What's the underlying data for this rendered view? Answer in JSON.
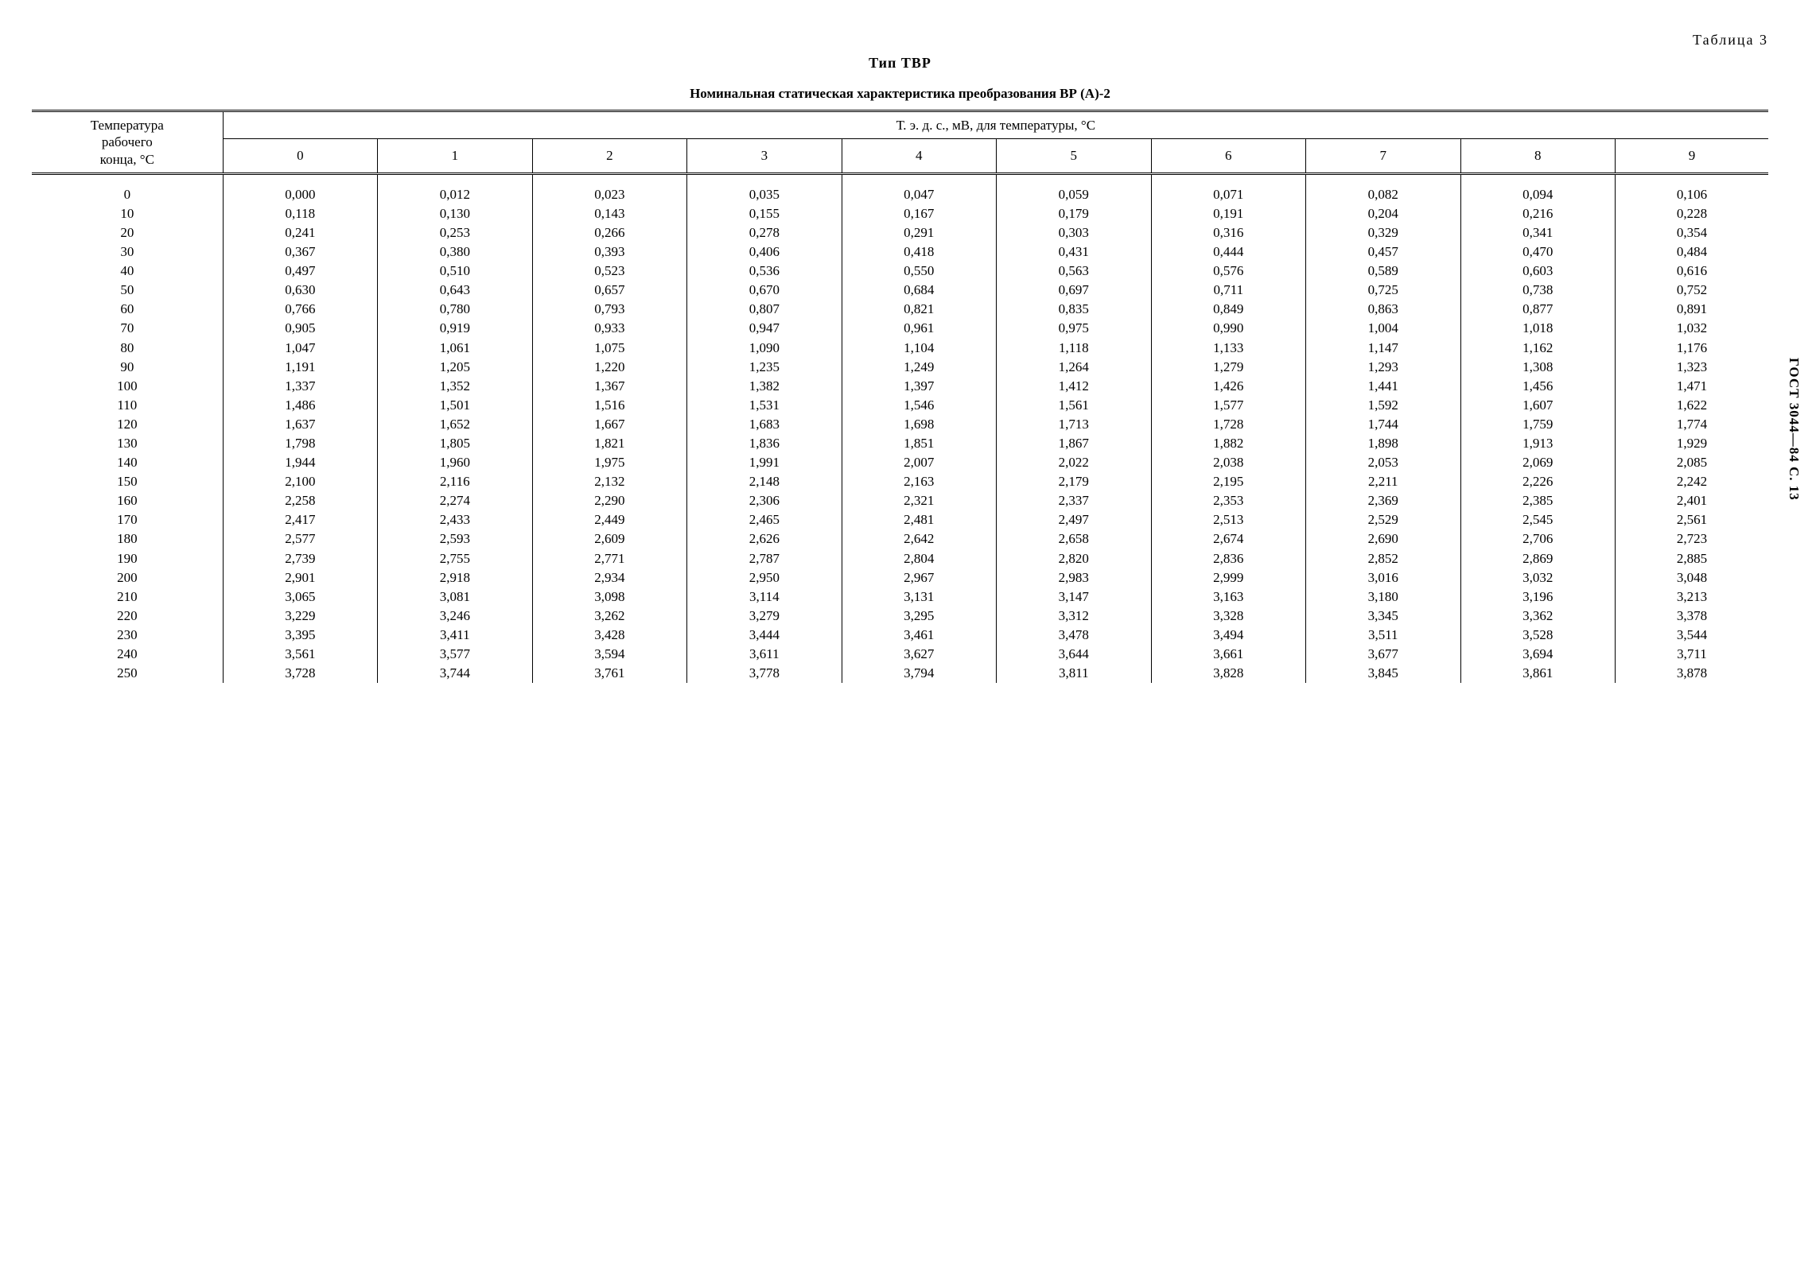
{
  "table_label": "Таблица 3",
  "title": "Тип ТВР",
  "subtitle": "Номинальная статическая характеристика преобразования ВР (А)-2",
  "side_label": "ГОСТ 3044—84 С. 13",
  "header": {
    "row_header_line1": "Температура",
    "row_header_line2": "рабочего",
    "row_header_line3": "конца, °С",
    "group_header": "Т. э. д. с., мВ, для температуры, °С",
    "cols": [
      "0",
      "1",
      "2",
      "3",
      "4",
      "5",
      "6",
      "7",
      "8",
      "9"
    ]
  },
  "table": {
    "temps": [
      "0",
      "10",
      "20",
      "30",
      "40",
      "50",
      "60",
      "70",
      "80",
      "90",
      "100",
      "110",
      "120",
      "130",
      "140",
      "150",
      "160",
      "170",
      "180",
      "190",
      "200",
      "210",
      "220",
      "230",
      "240",
      "250"
    ],
    "rows": [
      [
        "0,000",
        "0,012",
        "0,023",
        "0,035",
        "0,047",
        "0,059",
        "0,071",
        "0,082",
        "0,094",
        "0,106"
      ],
      [
        "0,118",
        "0,130",
        "0,143",
        "0,155",
        "0,167",
        "0,179",
        "0,191",
        "0,204",
        "0,216",
        "0,228"
      ],
      [
        "0,241",
        "0,253",
        "0,266",
        "0,278",
        "0,291",
        "0,303",
        "0,316",
        "0,329",
        "0,341",
        "0,354"
      ],
      [
        "0,367",
        "0,380",
        "0,393",
        "0,406",
        "0,418",
        "0,431",
        "0,444",
        "0,457",
        "0,470",
        "0,484"
      ],
      [
        "0,497",
        "0,510",
        "0,523",
        "0,536",
        "0,550",
        "0,563",
        "0,576",
        "0,589",
        "0,603",
        "0,616"
      ],
      [
        "0,630",
        "0,643",
        "0,657",
        "0,670",
        "0,684",
        "0,697",
        "0,711",
        "0,725",
        "0,738",
        "0,752"
      ],
      [
        "0,766",
        "0,780",
        "0,793",
        "0,807",
        "0,821",
        "0,835",
        "0,849",
        "0,863",
        "0,877",
        "0,891"
      ],
      [
        "0,905",
        "0,919",
        "0,933",
        "0,947",
        "0,961",
        "0,975",
        "0,990",
        "1,004",
        "1,018",
        "1,032"
      ],
      [
        "1,047",
        "1,061",
        "1,075",
        "1,090",
        "1,104",
        "1,118",
        "1,133",
        "1,147",
        "1,162",
        "1,176"
      ],
      [
        "1,191",
        "1,205",
        "1,220",
        "1,235",
        "1,249",
        "1,264",
        "1,279",
        "1,293",
        "1,308",
        "1,323"
      ],
      [
        "1,337",
        "1,352",
        "1,367",
        "1,382",
        "1,397",
        "1,412",
        "1,426",
        "1,441",
        "1,456",
        "1,471"
      ],
      [
        "1,486",
        "1,501",
        "1,516",
        "1,531",
        "1,546",
        "1,561",
        "1,577",
        "1,592",
        "1,607",
        "1,622"
      ],
      [
        "1,637",
        "1,652",
        "1,667",
        "1,683",
        "1,698",
        "1,713",
        "1,728",
        "1,744",
        "1,759",
        "1,774"
      ],
      [
        "1,798",
        "1,805",
        "1,821",
        "1,836",
        "1,851",
        "1,867",
        "1,882",
        "1,898",
        "1,913",
        "1,929"
      ],
      [
        "1,944",
        "1,960",
        "1,975",
        "1,991",
        "2,007",
        "2,022",
        "2,038",
        "2,053",
        "2,069",
        "2,085"
      ],
      [
        "2,100",
        "2,116",
        "2,132",
        "2,148",
        "2,163",
        "2,179",
        "2,195",
        "2,211",
        "2,226",
        "2,242"
      ],
      [
        "2,258",
        "2,274",
        "2,290",
        "2,306",
        "2,321",
        "2,337",
        "2,353",
        "2,369",
        "2,385",
        "2,401"
      ],
      [
        "2,417",
        "2,433",
        "2,449",
        "2,465",
        "2,481",
        "2,497",
        "2,513",
        "2,529",
        "2,545",
        "2,561"
      ],
      [
        "2,577",
        "2,593",
        "2,609",
        "2,626",
        "2,642",
        "2,658",
        "2,674",
        "2,690",
        "2,706",
        "2,723"
      ],
      [
        "2,739",
        "2,755",
        "2,771",
        "2,787",
        "2,804",
        "2,820",
        "2,836",
        "2,852",
        "2,869",
        "2,885"
      ],
      [
        "2,901",
        "2,918",
        "2,934",
        "2,950",
        "2,967",
        "2,983",
        "2,999",
        "3,016",
        "3,032",
        "3,048"
      ],
      [
        "3,065",
        "3,081",
        "3,098",
        "3,114",
        "3,131",
        "3,147",
        "3,163",
        "3,180",
        "3,196",
        "3,213"
      ],
      [
        "3,229",
        "3,246",
        "3,262",
        "3,279",
        "3,295",
        "3,312",
        "3,328",
        "3,345",
        "3,362",
        "3,378"
      ],
      [
        "3,395",
        "3,411",
        "3,428",
        "3,444",
        "3,461",
        "3,478",
        "3,494",
        "3,511",
        "3,528",
        "3,544"
      ],
      [
        "3,561",
        "3,577",
        "3,594",
        "3,611",
        "3,627",
        "3,644",
        "3,661",
        "3,677",
        "3,694",
        "3,711"
      ],
      [
        "3,728",
        "3,744",
        "3,761",
        "3,778",
        "3,794",
        "3,811",
        "3,828",
        "3,845",
        "3,861",
        "3,878"
      ]
    ]
  },
  "style": {
    "background_color": "#ffffff",
    "text_color": "#000000",
    "font_family": "Times New Roman",
    "body_fontsize_pt": 13,
    "title_fontsize_pt": 14
  }
}
